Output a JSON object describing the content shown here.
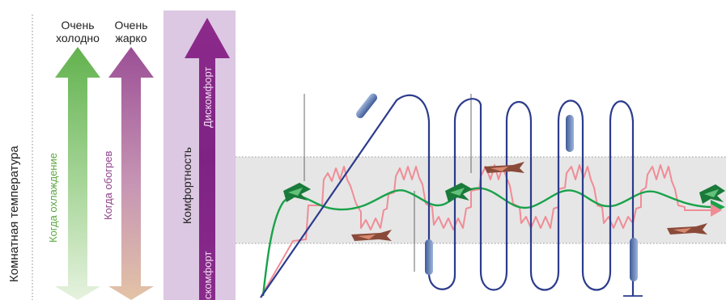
{
  "labels": {
    "room_temperature": "Комнатная температура",
    "very_cold": [
      "Очень",
      "холодно"
    ],
    "very_hot": [
      "Очень",
      "жарко"
    ],
    "when_cooling": "Когда охлаждение",
    "when_heating": "Когда обогрев",
    "comfort": "Комфортность",
    "discomfort_top": "Дискомфорт",
    "discomfort_bottom": "Дискомфорт"
  },
  "colors": {
    "cooling_arrow": "#6ab85a",
    "heating_arrow": "#a0559a",
    "comfort_panel": "#dcc8e2",
    "comfort_arrow": "#8a2a8a",
    "comfort_band": "#e6e6e6",
    "blue_curve": "#2c3b8c",
    "pink_curve": "#f08c96",
    "green_curve": "#1aa24a"
  },
  "icons": [
    "airflow-icon",
    "jet-airflow-icon",
    "blue-draft-icon"
  ]
}
